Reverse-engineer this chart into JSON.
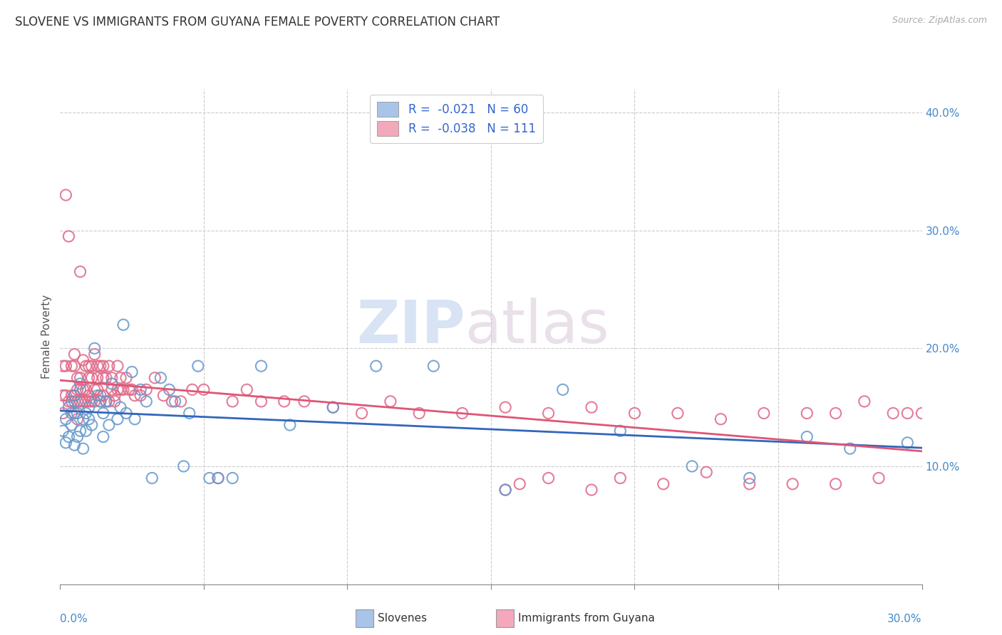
{
  "title": "SLOVENE VS IMMIGRANTS FROM GUYANA FEMALE POVERTY CORRELATION CHART",
  "source": "Source: ZipAtlas.com",
  "ylabel": "Female Poverty",
  "right_yticks": [
    "10.0%",
    "20.0%",
    "30.0%",
    "40.0%"
  ],
  "right_ytick_vals": [
    0.1,
    0.2,
    0.3,
    0.4
  ],
  "legend_blue_label": "R =  -0.021   N = 60",
  "legend_pink_label": "R =  -0.038   N = 111",
  "legend_blue_sublabel": "Slovenes",
  "legend_pink_sublabel": "Immigrants from Guyana",
  "blue_dot_color": "#a8c4e8",
  "blue_dot_edge": "#6699cc",
  "pink_dot_color": "#f4a8bc",
  "pink_dot_edge": "#e06888",
  "blue_line_color": "#3366bb",
  "pink_line_color": "#e05575",
  "watermark_zip_color": "#c8d8ee",
  "watermark_atlas_color": "#d8c8cc",
  "xlim": [
    0.0,
    0.3
  ],
  "ylim": [
    0.0,
    0.42
  ],
  "blue_scatter_x": [
    0.001,
    0.002,
    0.002,
    0.003,
    0.003,
    0.004,
    0.004,
    0.005,
    0.005,
    0.005,
    0.006,
    0.006,
    0.007,
    0.007,
    0.008,
    0.008,
    0.009,
    0.009,
    0.01,
    0.01,
    0.011,
    0.012,
    0.013,
    0.014,
    0.015,
    0.015,
    0.016,
    0.017,
    0.018,
    0.02,
    0.021,
    0.022,
    0.023,
    0.025,
    0.026,
    0.028,
    0.03,
    0.032,
    0.035,
    0.038,
    0.04,
    0.043,
    0.045,
    0.048,
    0.052,
    0.055,
    0.06,
    0.07,
    0.08,
    0.095,
    0.11,
    0.13,
    0.155,
    0.175,
    0.195,
    0.22,
    0.24,
    0.26,
    0.275,
    0.295
  ],
  "blue_scatter_y": [
    0.13,
    0.14,
    0.12,
    0.15,
    0.125,
    0.135,
    0.145,
    0.155,
    0.118,
    0.16,
    0.125,
    0.145,
    0.13,
    0.17,
    0.14,
    0.115,
    0.145,
    0.13,
    0.15,
    0.14,
    0.135,
    0.2,
    0.16,
    0.155,
    0.145,
    0.125,
    0.155,
    0.135,
    0.17,
    0.14,
    0.15,
    0.22,
    0.145,
    0.18,
    0.14,
    0.165,
    0.155,
    0.09,
    0.175,
    0.165,
    0.155,
    0.1,
    0.145,
    0.185,
    0.09,
    0.09,
    0.09,
    0.185,
    0.135,
    0.15,
    0.185,
    0.185,
    0.08,
    0.165,
    0.13,
    0.1,
    0.09,
    0.125,
    0.115,
    0.12
  ],
  "pink_scatter_x": [
    0.001,
    0.001,
    0.001,
    0.002,
    0.002,
    0.002,
    0.003,
    0.003,
    0.004,
    0.004,
    0.004,
    0.005,
    0.005,
    0.005,
    0.005,
    0.006,
    0.006,
    0.006,
    0.006,
    0.007,
    0.007,
    0.007,
    0.007,
    0.008,
    0.008,
    0.008,
    0.009,
    0.009,
    0.009,
    0.01,
    0.01,
    0.01,
    0.01,
    0.011,
    0.011,
    0.011,
    0.012,
    0.012,
    0.012,
    0.013,
    0.013,
    0.013,
    0.014,
    0.014,
    0.014,
    0.015,
    0.015,
    0.015,
    0.016,
    0.016,
    0.017,
    0.017,
    0.018,
    0.018,
    0.019,
    0.019,
    0.02,
    0.02,
    0.021,
    0.021,
    0.022,
    0.023,
    0.024,
    0.025,
    0.026,
    0.028,
    0.03,
    0.033,
    0.036,
    0.039,
    0.042,
    0.046,
    0.05,
    0.055,
    0.06,
    0.065,
    0.07,
    0.078,
    0.085,
    0.095,
    0.105,
    0.115,
    0.125,
    0.14,
    0.155,
    0.17,
    0.185,
    0.2,
    0.215,
    0.23,
    0.245,
    0.26,
    0.27,
    0.28,
    0.29,
    0.295,
    0.3,
    0.305,
    0.31,
    0.315,
    0.155,
    0.16,
    0.17,
    0.185,
    0.195,
    0.21,
    0.225,
    0.24,
    0.255,
    0.27,
    0.285
  ],
  "pink_scatter_y": [
    0.16,
    0.145,
    0.185,
    0.16,
    0.185,
    0.33,
    0.155,
    0.295,
    0.16,
    0.185,
    0.155,
    0.145,
    0.16,
    0.195,
    0.185,
    0.165,
    0.175,
    0.14,
    0.155,
    0.155,
    0.175,
    0.265,
    0.165,
    0.19,
    0.165,
    0.155,
    0.185,
    0.165,
    0.155,
    0.185,
    0.175,
    0.16,
    0.155,
    0.185,
    0.175,
    0.155,
    0.165,
    0.195,
    0.155,
    0.175,
    0.185,
    0.165,
    0.16,
    0.185,
    0.155,
    0.175,
    0.185,
    0.16,
    0.155,
    0.175,
    0.185,
    0.155,
    0.165,
    0.175,
    0.155,
    0.16,
    0.165,
    0.185,
    0.165,
    0.175,
    0.165,
    0.175,
    0.165,
    0.165,
    0.16,
    0.16,
    0.165,
    0.175,
    0.16,
    0.155,
    0.155,
    0.165,
    0.165,
    0.09,
    0.155,
    0.165,
    0.155,
    0.155,
    0.155,
    0.15,
    0.145,
    0.155,
    0.145,
    0.145,
    0.15,
    0.145,
    0.15,
    0.145,
    0.145,
    0.14,
    0.145,
    0.145,
    0.145,
    0.155,
    0.145,
    0.145,
    0.145,
    0.15,
    0.145,
    0.145,
    0.08,
    0.085,
    0.09,
    0.08,
    0.09,
    0.085,
    0.095,
    0.085,
    0.085,
    0.085,
    0.09
  ]
}
